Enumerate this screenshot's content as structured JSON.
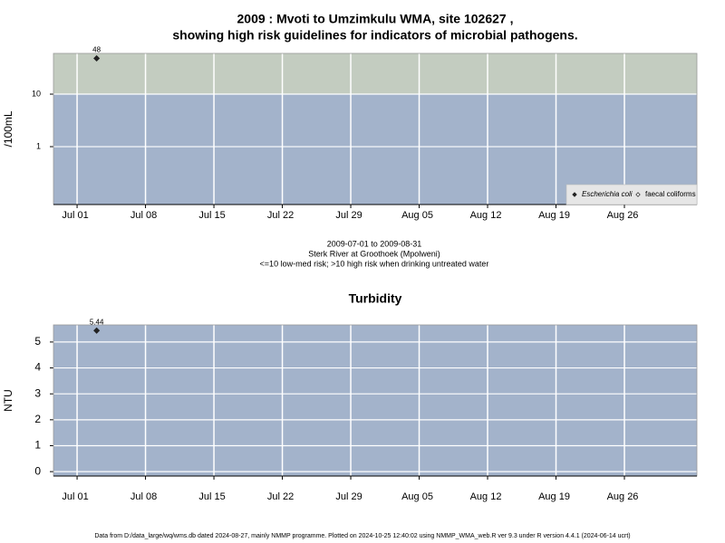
{
  "chart_data": [
    {
      "type": "scatter",
      "title": [
        "2009 : Mvoti to Umzimkulu WMA, site 102627 ,",
        "showing high risk guidelines for indicators of microbial pathogens."
      ],
      "notes": [
        "2009-07-01 to 2009-08-31",
        "Sterk River at Groothoek (Mpolweni)",
        "<=10 low-med risk; >10 high risk when drinking untreated water"
      ],
      "y_label": "/100mL",
      "log_y": true,
      "ylim": [
        0.079,
        59.7
      ],
      "yticks": [
        1,
        10
      ],
      "xlim": [
        "2009-06-28T14:00:00Z",
        "2009-09-02T10:00:00Z"
      ],
      "xticks": [
        {
          "value": "2009-07-01",
          "label": "Jul 01"
        },
        {
          "value": "2009-07-08",
          "label": "Jul 08"
        },
        {
          "value": "2009-07-15",
          "label": "Jul 15"
        },
        {
          "value": "2009-07-22",
          "label": "Jul 22"
        },
        {
          "value": "2009-07-29",
          "label": "Jul 29"
        },
        {
          "value": "2009-08-05",
          "label": "Aug 05"
        },
        {
          "value": "2009-08-12",
          "label": "Aug 12"
        },
        {
          "value": "2009-08-19",
          "label": "Aug 19"
        },
        {
          "value": "2009-08-26",
          "label": "Aug 26"
        }
      ],
      "grid": true,
      "threshold": 10,
      "band_colors": {
        "above": "#c3ccc0",
        "below": "#a3b3cb"
      },
      "legend": "bottom-right",
      "series": [
        {
          "name": "Escherichia coli",
          "marker": "filled",
          "color": "#222222",
          "x": [
            "2009-07-03"
          ],
          "values": [
            48
          ]
        },
        {
          "name": "faecal coliforms",
          "marker": "open",
          "color": "#222222",
          "x": [],
          "values": []
        }
      ]
    },
    {
      "type": "scatter",
      "title": [
        "Turbidity"
      ],
      "y_label": "NTU",
      "log_y": false,
      "ylim": [
        -0.17,
        5.66
      ],
      "yticks": [
        0,
        1,
        2,
        3,
        4,
        5
      ],
      "xlim": [
        "2009-06-28T14:00:00Z",
        "2009-09-02T10:00:00Z"
      ],
      "xticks": [
        {
          "value": "2009-07-01",
          "label": "Jul 01"
        },
        {
          "value": "2009-07-08",
          "label": "Jul 08"
        },
        {
          "value": "2009-07-15",
          "label": "Jul 15"
        },
        {
          "value": "2009-07-22",
          "label": "Jul 22"
        },
        {
          "value": "2009-07-29",
          "label": "Jul 29"
        },
        {
          "value": "2009-08-05",
          "label": "Aug 05"
        },
        {
          "value": "2009-08-12",
          "label": "Aug 12"
        },
        {
          "value": "2009-08-19",
          "label": "Aug 19"
        },
        {
          "value": "2009-08-26",
          "label": "Aug 26"
        }
      ],
      "grid": true,
      "band_colors": {
        "below": "#a3b3cb"
      },
      "series": [
        {
          "name": "Turbidity",
          "marker": "filled",
          "color": "#222222",
          "x": [
            "2009-07-03"
          ],
          "values": [
            5.44
          ]
        }
      ]
    }
  ],
  "footer": "Data from D:/data_large/wq/wms.db dated 2024-08-27, mainly NMMP programme. Plotted on 2024-10-25 12:40:02 using NMMP_WMA_web.R ver 9.3 under R version 4.4.1 (2024-06-14 ucrt)"
}
